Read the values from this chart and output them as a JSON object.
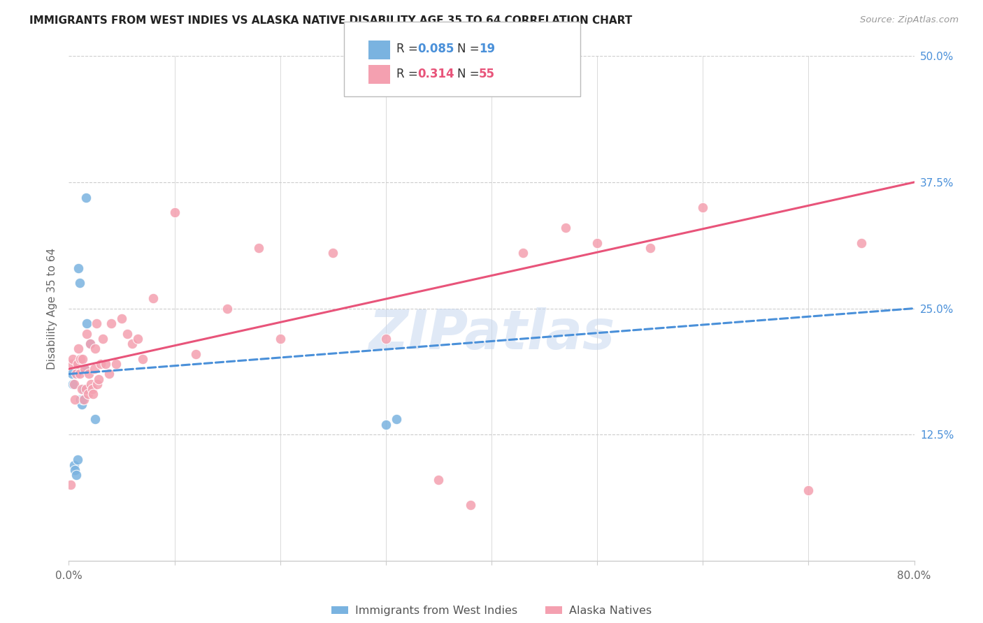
{
  "title": "IMMIGRANTS FROM WEST INDIES VS ALASKA NATIVE DISABILITY AGE 35 TO 64 CORRELATION CHART",
  "source": "Source: ZipAtlas.com",
  "ylabel": "Disability Age 35 to 64",
  "xlim": [
    0.0,
    80.0
  ],
  "ylim": [
    0.0,
    50.0
  ],
  "yticks": [
    12.5,
    25.0,
    37.5,
    50.0
  ],
  "xticks": [
    0.0,
    10.0,
    20.0,
    30.0,
    40.0,
    50.0,
    60.0,
    70.0,
    80.0
  ],
  "r_blue": 0.085,
  "n_blue": 19,
  "r_pink": 0.314,
  "n_pink": 55,
  "legend_label_blue": "Immigrants from West Indies",
  "legend_label_pink": "Alaska Natives",
  "blue_color": "#7ab3e0",
  "pink_color": "#f4a0b0",
  "blue_line_color": "#4a90d9",
  "pink_line_color": "#e8547a",
  "watermark": "ZIPatlas",
  "blue_line_start_x": 0.0,
  "blue_line_start_y": 18.5,
  "blue_line_end_x": 80.0,
  "blue_line_end_y": 25.0,
  "pink_line_start_x": 0.0,
  "pink_line_start_y": 19.0,
  "pink_line_end_x": 80.0,
  "pink_line_end_y": 37.5,
  "blue_scatter_x": [
    0.3,
    0.4,
    0.5,
    0.6,
    0.7,
    0.8,
    0.9,
    1.0,
    1.1,
    1.2,
    1.3,
    1.4,
    1.5,
    1.6,
    1.7,
    2.0,
    2.5,
    30.0,
    31.0
  ],
  "blue_scatter_y": [
    18.5,
    17.5,
    9.5,
    9.0,
    8.5,
    10.0,
    29.0,
    27.5,
    16.0,
    15.5,
    16.0,
    17.0,
    19.0,
    36.0,
    23.5,
    21.5,
    14.0,
    13.5,
    14.0
  ],
  "pink_scatter_x": [
    0.2,
    0.3,
    0.4,
    0.5,
    0.6,
    0.7,
    0.8,
    0.9,
    1.0,
    1.1,
    1.2,
    1.3,
    1.4,
    1.5,
    1.6,
    1.7,
    1.8,
    1.9,
    2.0,
    2.1,
    2.2,
    2.3,
    2.4,
    2.5,
    2.6,
    2.7,
    2.8,
    3.0,
    3.2,
    3.5,
    3.8,
    4.0,
    4.5,
    5.0,
    5.5,
    6.0,
    6.5,
    7.0,
    8.0,
    10.0,
    12.0,
    15.0,
    18.0,
    20.0,
    25.0,
    30.0,
    35.0,
    38.0,
    43.0,
    47.0,
    50.0,
    55.0,
    60.0,
    70.0,
    75.0
  ],
  "pink_scatter_y": [
    7.5,
    19.5,
    20.0,
    17.5,
    16.0,
    18.5,
    19.5,
    21.0,
    18.5,
    20.0,
    17.0,
    20.0,
    16.0,
    19.0,
    17.0,
    22.5,
    16.5,
    18.5,
    21.5,
    17.5,
    17.0,
    16.5,
    19.0,
    21.0,
    23.5,
    17.5,
    18.0,
    19.5,
    22.0,
    19.5,
    18.5,
    23.5,
    19.5,
    24.0,
    22.5,
    21.5,
    22.0,
    20.0,
    26.0,
    34.5,
    20.5,
    25.0,
    31.0,
    22.0,
    30.5,
    22.0,
    8.0,
    5.5,
    30.5,
    33.0,
    31.5,
    31.0,
    35.0,
    7.0,
    31.5
  ]
}
